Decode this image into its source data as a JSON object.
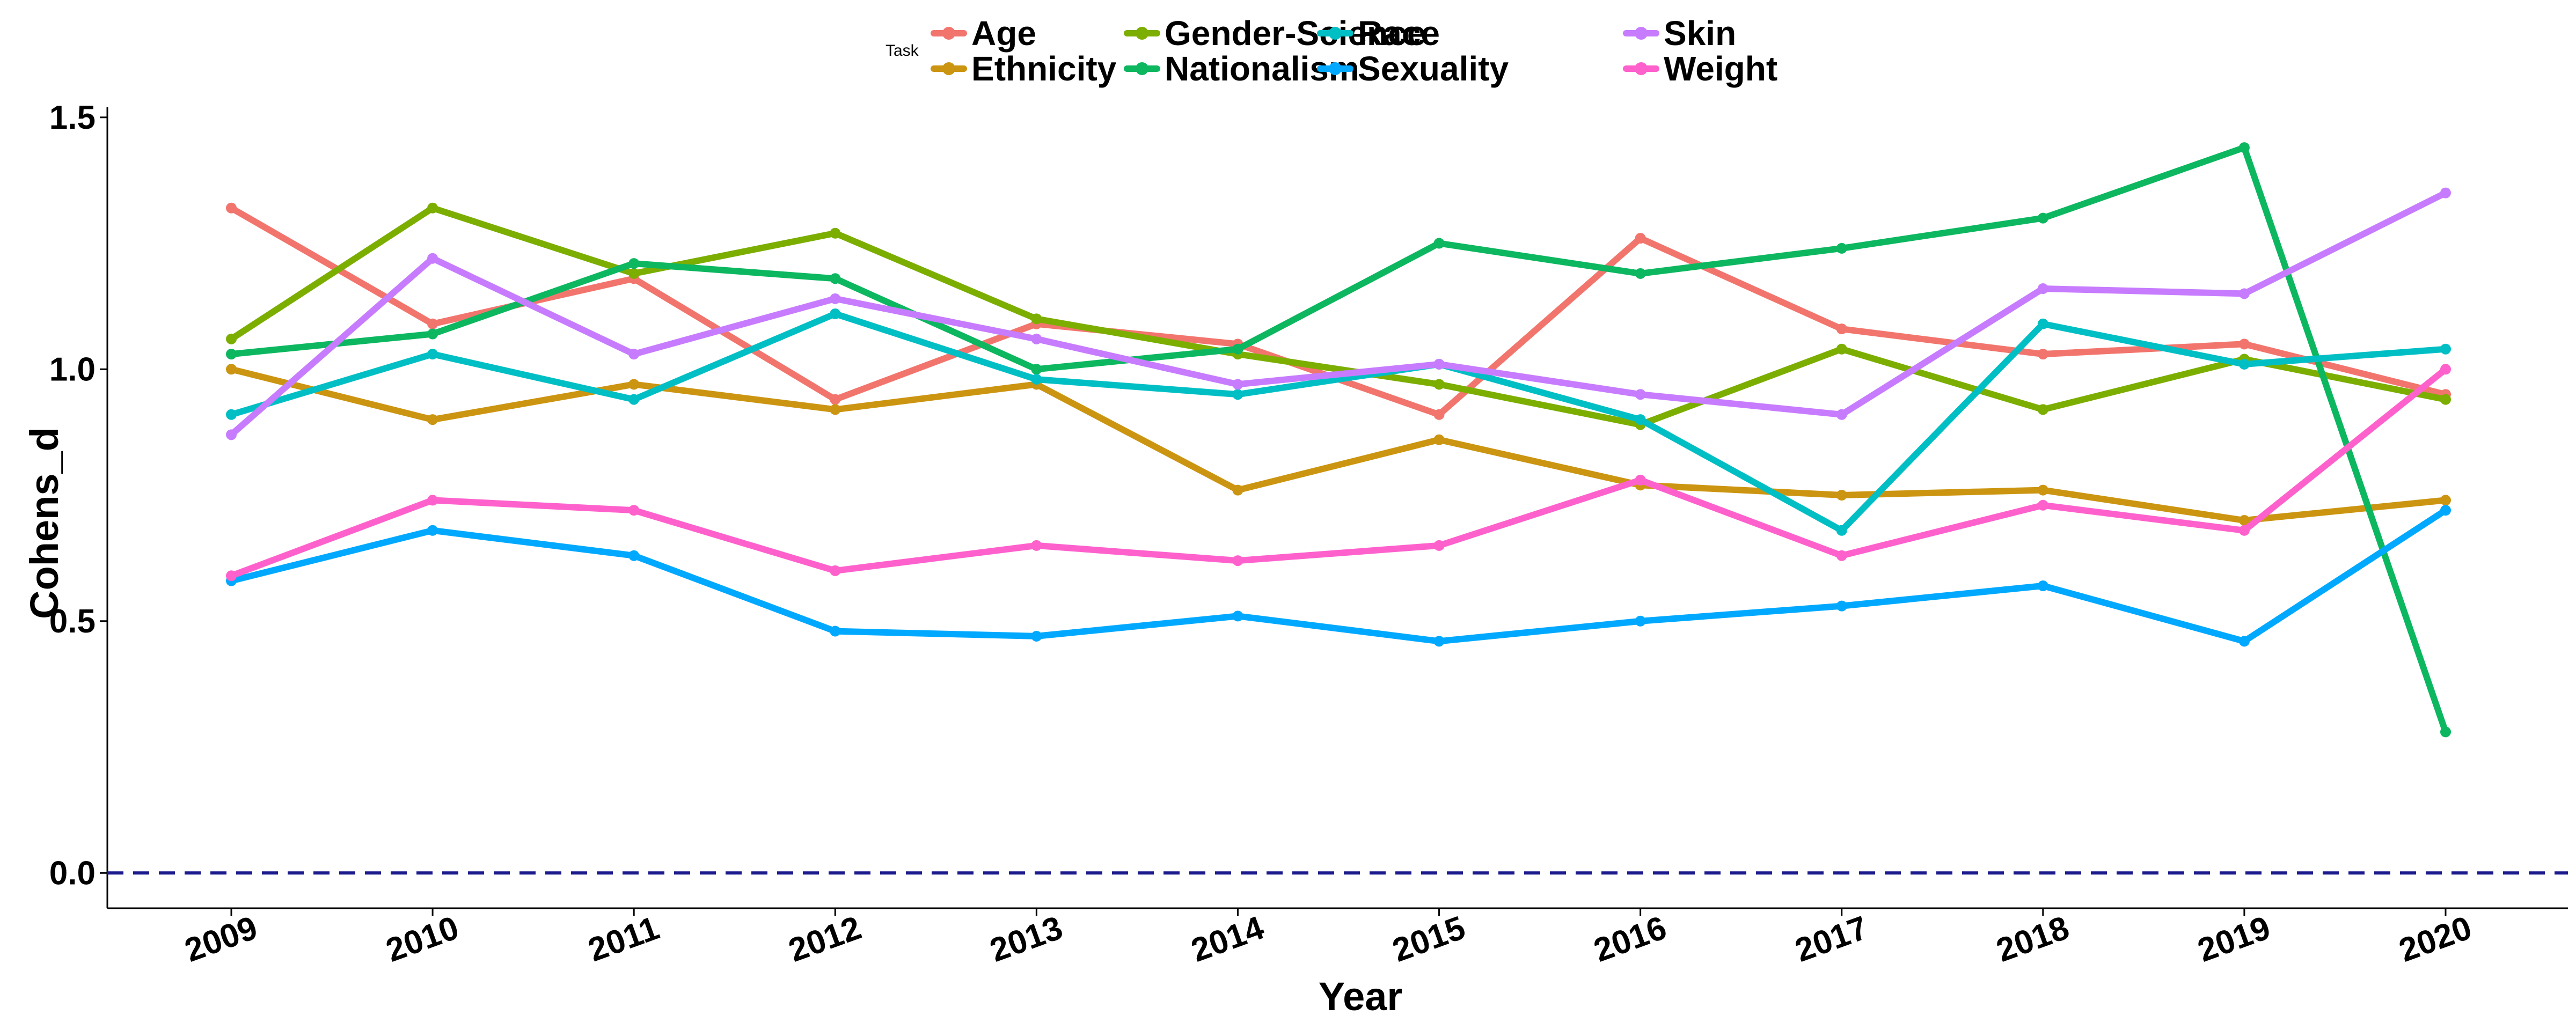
{
  "chart_data": {
    "type": "line",
    "xlabel": "Year",
    "ylabel": "Cohens_d",
    "legend_title": "Task",
    "legend_position": "top",
    "x": [
      "2009",
      "2010",
      "2011",
      "2012",
      "2013",
      "2014",
      "2015",
      "2016",
      "2017",
      "2018",
      "2019",
      "2020"
    ],
    "yticks": [
      "0.0",
      "0.5",
      "1.0",
      "1.5"
    ],
    "ylim": [
      -0.07,
      1.52
    ],
    "grid": false,
    "reference_line": {
      "y": 0,
      "style": "dashed",
      "color": "#1a1a8c"
    },
    "series": [
      {
        "name": "Age",
        "color": "#F2756D",
        "values": [
          1.32,
          1.09,
          1.18,
          0.94,
          1.09,
          1.05,
          0.91,
          1.26,
          1.08,
          1.03,
          1.05,
          0.95
        ]
      },
      {
        "name": "Ethnicity",
        "color": "#CC9511",
        "values": [
          1.0,
          0.9,
          0.97,
          0.92,
          0.97,
          0.76,
          0.86,
          0.77,
          0.75,
          0.76,
          0.7,
          0.74
        ]
      },
      {
        "name": "Gender-Science",
        "color": "#7CAE00",
        "values": [
          1.06,
          1.32,
          1.19,
          1.27,
          1.1,
          1.03,
          0.97,
          0.89,
          1.04,
          0.92,
          1.02,
          0.94
        ]
      },
      {
        "name": "Nationalism",
        "color": "#0CB760",
        "values": [
          1.03,
          1.07,
          1.21,
          1.18,
          1.0,
          1.04,
          1.25,
          1.19,
          1.24,
          1.3,
          1.44,
          0.28
        ]
      },
      {
        "name": "Race",
        "color": "#00BFC4",
        "values": [
          0.91,
          1.03,
          0.94,
          1.11,
          0.98,
          0.95,
          1.01,
          0.9,
          0.68,
          1.09,
          1.01,
          1.04
        ]
      },
      {
        "name": "Sexuality",
        "color": "#00A9FF",
        "values": [
          0.58,
          0.68,
          0.63,
          0.48,
          0.47,
          0.51,
          0.46,
          0.5,
          0.53,
          0.57,
          0.46,
          0.72
        ]
      },
      {
        "name": "Skin",
        "color": "#C77CFF",
        "values": [
          0.87,
          1.22,
          1.03,
          1.14,
          1.06,
          0.97,
          1.01,
          0.95,
          0.91,
          1.16,
          1.15,
          1.35
        ]
      },
      {
        "name": "Weight",
        "color": "#FF61CC",
        "values": [
          0.59,
          0.74,
          0.72,
          0.6,
          0.65,
          0.62,
          0.65,
          0.78,
          0.63,
          0.73,
          0.68,
          1.0
        ]
      }
    ]
  }
}
